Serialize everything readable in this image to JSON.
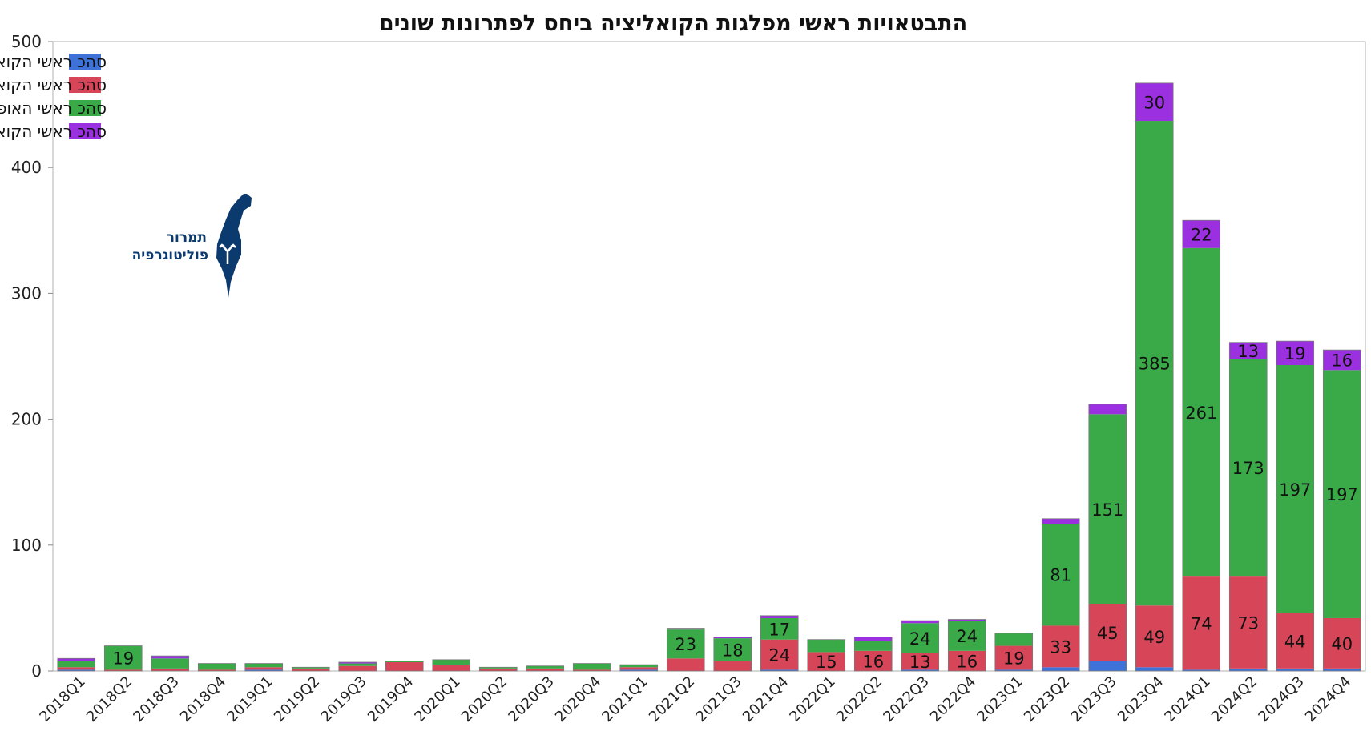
{
  "chart_data": {
    "type": "bar",
    "stacked": true,
    "title": "התבטאויות ראשי מפלגות הקואליציה ביחס לפתרונות שונים",
    "xlabel": "",
    "ylabel": "",
    "ylim": [
      0,
      500
    ],
    "yticks": [
      0,
      100,
      200,
      300,
      400,
      500
    ],
    "grid": false,
    "legend_position": "top-left",
    "categories": [
      "2018Q1",
      "2018Q2",
      "2018Q3",
      "2018Q4",
      "2019Q1",
      "2019Q2",
      "2019Q3",
      "2019Q4",
      "2020Q1",
      "2020Q2",
      "2020Q3",
      "2020Q4",
      "2021Q1",
      "2021Q2",
      "2021Q3",
      "2021Q4",
      "2022Q1",
      "2022Q2",
      "2022Q3",
      "2022Q4",
      "2023Q1",
      "2023Q2",
      "2023Q3",
      "2023Q4",
      "2024Q1",
      "2024Q2",
      "2024Q3",
      "2024Q4"
    ],
    "series": [
      {
        "name": "סהכ ראשי הקואליציה בעד שתי מדינות",
        "color": "#3f72d9",
        "values": [
          1,
          0,
          0,
          0,
          1,
          0,
          0,
          0,
          0,
          0,
          0,
          0,
          1,
          0,
          0,
          1,
          0,
          0,
          1,
          0,
          1,
          3,
          8,
          3,
          1,
          2,
          2,
          2
        ]
      },
      {
        "name": "סהכ ראשי הקואליציה בעד ספוח",
        "color": "#d64558",
        "values": [
          2,
          1,
          2,
          1,
          2,
          2,
          4,
          7,
          5,
          2,
          2,
          1,
          2,
          10,
          8,
          24,
          15,
          16,
          13,
          16,
          19,
          33,
          45,
          49,
          74,
          73,
          44,
          40
        ]
      },
      {
        "name": "סהכ ראשי האופוזיציה בעד סטטוס קוו",
        "color": "#3aaa48",
        "values": [
          5,
          19,
          8,
          5,
          3,
          1,
          2,
          1,
          4,
          1,
          2,
          5,
          2,
          23,
          18,
          17,
          10,
          8,
          24,
          24,
          10,
          81,
          151,
          385,
          261,
          173,
          197,
          197
        ]
      },
      {
        "name": "סהכ ראשי הקואליציה בעד היפרדות",
        "color": "#9b30e0",
        "values": [
          2,
          0,
          2,
          0,
          0,
          0,
          1,
          0,
          0,
          0,
          0,
          0,
          0,
          1,
          1,
          2,
          0,
          3,
          2,
          1,
          0,
          4,
          8,
          30,
          22,
          13,
          19,
          16
        ]
      }
    ],
    "data_labels": [
      {
        "category": "2018Q2",
        "series": 2,
        "text": "19"
      },
      {
        "category": "2021Q2",
        "series": 2,
        "text": "23"
      },
      {
        "category": "2021Q3",
        "series": 2,
        "text": "18"
      },
      {
        "category": "2021Q4",
        "series": 2,
        "text": "17"
      },
      {
        "category": "2021Q4",
        "series": 1,
        "text": "24"
      },
      {
        "category": "2022Q1",
        "series": 1,
        "text": "15"
      },
      {
        "category": "2022Q2",
        "series": 1,
        "text": "16"
      },
      {
        "category": "2022Q3",
        "series": 2,
        "text": "24"
      },
      {
        "category": "2022Q3",
        "series": 1,
        "text": "13"
      },
      {
        "category": "2022Q4",
        "series": 2,
        "text": "24"
      },
      {
        "category": "2022Q4",
        "series": 1,
        "text": "16"
      },
      {
        "category": "2023Q1",
        "series": 1,
        "text": "19"
      },
      {
        "category": "2023Q2",
        "series": 2,
        "text": "81"
      },
      {
        "category": "2023Q2",
        "series": 1,
        "text": "33"
      },
      {
        "category": "2023Q3",
        "series": 2,
        "text": "151"
      },
      {
        "category": "2023Q3",
        "series": 1,
        "text": "45"
      },
      {
        "category": "2023Q4",
        "series": 3,
        "text": "30"
      },
      {
        "category": "2023Q4",
        "series": 2,
        "text": "385"
      },
      {
        "category": "2023Q4",
        "series": 1,
        "text": "49"
      },
      {
        "category": "2024Q1",
        "series": 3,
        "text": "22"
      },
      {
        "category": "2024Q1",
        "series": 2,
        "text": "261"
      },
      {
        "category": "2024Q1",
        "series": 1,
        "text": "74"
      },
      {
        "category": "2024Q2",
        "series": 3,
        "text": "13"
      },
      {
        "category": "2024Q2",
        "series": 2,
        "text": "173"
      },
      {
        "category": "2024Q2",
        "series": 1,
        "text": "73"
      },
      {
        "category": "2024Q3",
        "series": 3,
        "text": "19"
      },
      {
        "category": "2024Q3",
        "series": 2,
        "text": "197"
      },
      {
        "category": "2024Q3",
        "series": 1,
        "text": "44"
      },
      {
        "category": "2024Q4",
        "series": 3,
        "text": "16"
      },
      {
        "category": "2024Q4",
        "series": 2,
        "text": "197"
      },
      {
        "category": "2024Q4",
        "series": 1,
        "text": "40"
      }
    ]
  },
  "logo": {
    "line1": "תמרור",
    "line2": "פוליטוגרפיה",
    "icon": "israel-map-icon",
    "color": "#0b3a6e"
  }
}
